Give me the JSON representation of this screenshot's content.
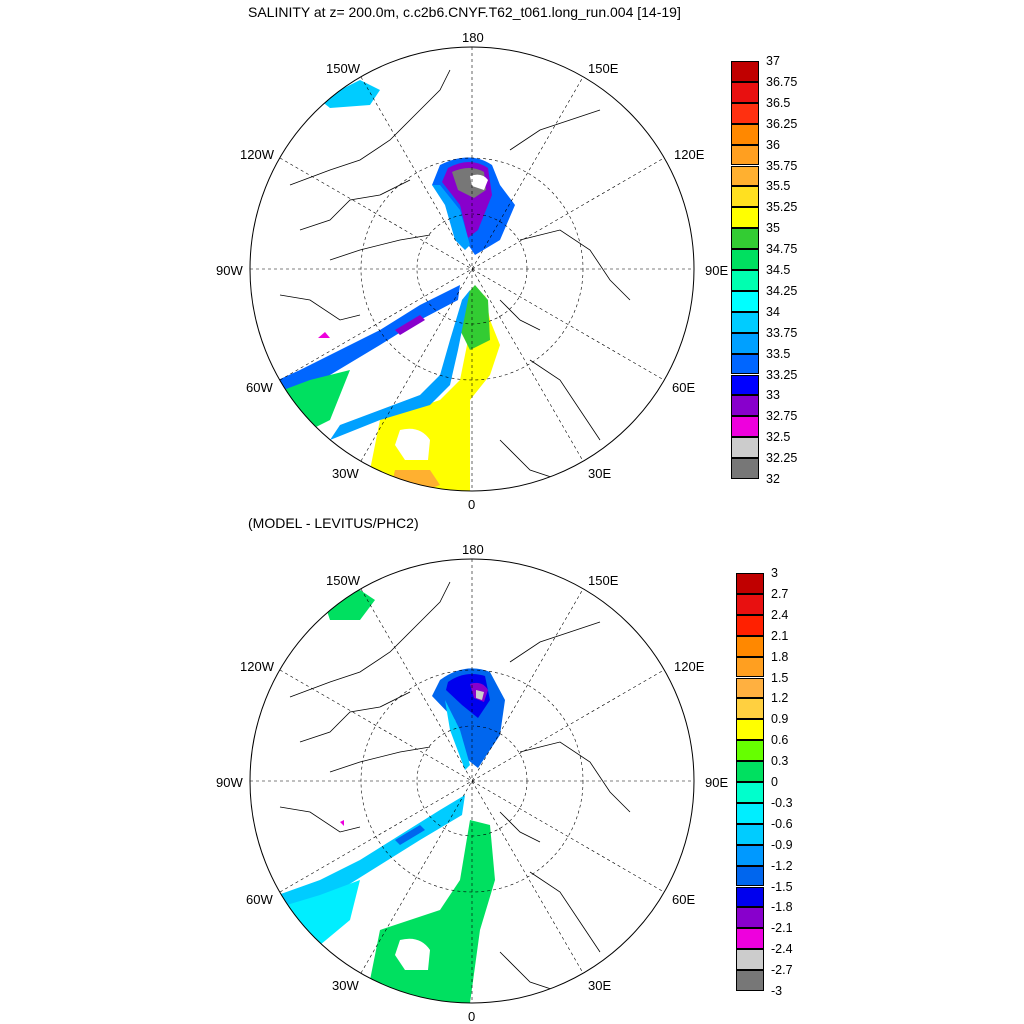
{
  "panel_top": {
    "title": "SALINITY at z= 200.0m, c.c2b6.CNYF.T62_t061.long_run.004 [14-19]",
    "lon_labels": {
      "top": "180",
      "bottom": "0",
      "left": "90W",
      "right": "90E",
      "nw1": "150W",
      "nw2": "120W",
      "sw1": "60W",
      "sw2": "30W",
      "ne1": "150E",
      "ne2": "120E",
      "se1": "60E",
      "se2": "30E"
    },
    "colorbar": {
      "levels": [
        "37",
        "36.75",
        "36.5",
        "36.25",
        "36",
        "35.75",
        "35.5",
        "35.25",
        "35",
        "34.75",
        "34.5",
        "34.25",
        "34",
        "33.75",
        "33.5",
        "33.25",
        "33",
        "32.75",
        "32.5",
        "32.25",
        "32"
      ],
      "colors": [
        "#c00000",
        "#e81010",
        "#ff3010",
        "#ff8800",
        "#ff9f20",
        "#ffb030",
        "#ffe020",
        "#ffff00",
        "#33cc33",
        "#00e060",
        "#00ffb0",
        "#00ffff",
        "#00ccff",
        "#00a0ff",
        "#0066ff",
        "#0000ff",
        "#8800cc",
        "#ee00dd",
        "#cccccc",
        "#777777"
      ]
    }
  },
  "panel_bottom": {
    "title": "(MODEL - LEVITUS/PHC2)",
    "lon_labels": {
      "top": "180",
      "bottom": "0",
      "left": "90W",
      "right": "90E",
      "nw1": "150W",
      "nw2": "120W",
      "sw1": "60W",
      "sw2": "30W",
      "ne1": "150E",
      "ne2": "120E",
      "se1": "60E",
      "se2": "30E"
    },
    "colorbar": {
      "levels": [
        "3",
        "2.7",
        "2.4",
        "2.1",
        "1.8",
        "1.5",
        "1.2",
        "0.9",
        "0.6",
        "0.3",
        "0",
        "-0.3",
        "-0.6",
        "-0.9",
        "-1.2",
        "-1.5",
        "-1.8",
        "-2.1",
        "-2.4",
        "-2.7",
        "-3"
      ],
      "colors": [
        "#c00000",
        "#e81010",
        "#ff2000",
        "#ff8800",
        "#ff9f20",
        "#ffb040",
        "#ffd040",
        "#ffff00",
        "#66ff00",
        "#00e060",
        "#00ffcc",
        "#00eeff",
        "#00ccff",
        "#0099ff",
        "#0066ee",
        "#0000ee",
        "#8800cc",
        "#ee00dd",
        "#cccccc",
        "#777777"
      ]
    }
  }
}
